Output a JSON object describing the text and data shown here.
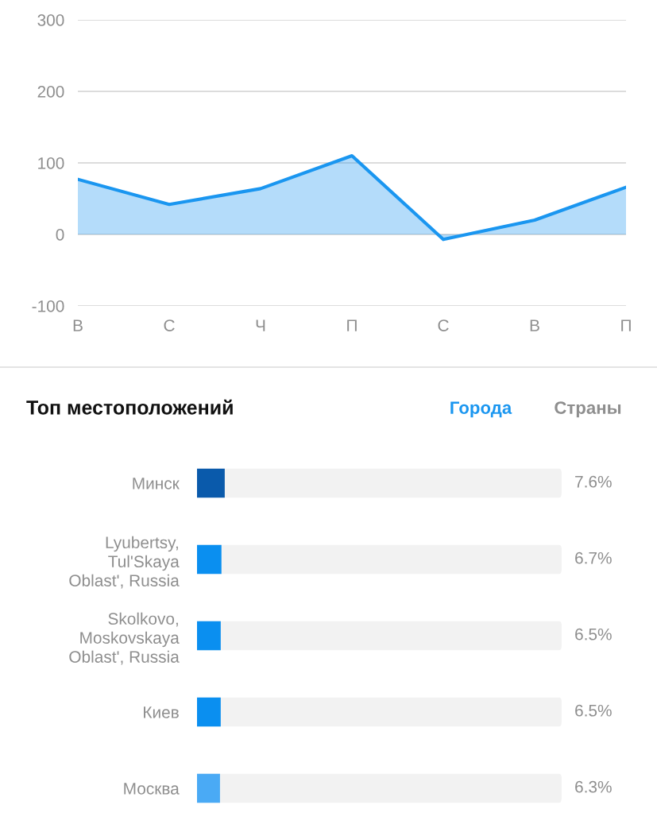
{
  "chart_data": [
    {
      "type": "area",
      "categories": [
        "В",
        "С",
        "Ч",
        "П",
        "С",
        "В",
        "П"
      ],
      "series": [
        {
          "color": "#1a96f0",
          "values": [
            77,
            42,
            64,
            110,
            -7,
            20,
            66
          ]
        }
      ],
      "ylim": [
        -100,
        300
      ],
      "yticks": [
        -100,
        0,
        100,
        200,
        300
      ],
      "grid": "y"
    },
    {
      "type": "bar",
      "orientation": "horizontal",
      "title": "Топ местоположений",
      "annotations": [
        "Города",
        "Страны"
      ],
      "categories": [
        "Минск",
        "Lyubertsy, Tul'Skaya Oblast', Russia",
        "Skolkovo, Moskovskaya Oblast', Russia",
        "Киев",
        "Москва"
      ],
      "values": [
        7.6,
        6.7,
        6.5,
        6.5,
        6.3
      ],
      "colors": [
        "#0a5aab",
        "#0a8ff0",
        "#0a8ff0",
        "#0a8ff0",
        "#4aaaf5"
      ],
      "value_labels": [
        "7.6%",
        "6.7%",
        "6.5%",
        "6.5%",
        "6.3%"
      ],
      "xlim": [
        0,
        100
      ],
      "tick_labels": "y"
    }
  ]
}
